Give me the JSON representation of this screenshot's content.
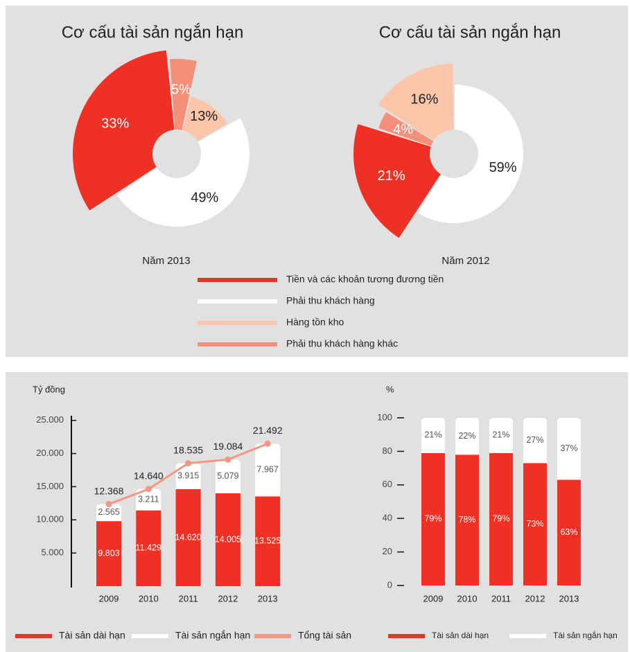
{
  "chart_data": [
    {
      "type": "pie",
      "title": "Cơ cấu tài sản ngắn hạn",
      "label": "Năm 2013",
      "categories": [
        "Tiền và các khoản tương đương tiền",
        "Phải thu khách hàng",
        "Hàng tồn kho",
        "Phải thu khách hàng khác"
      ],
      "colors": [
        "#ee3124",
        "#ffffff",
        "#fbc5aa",
        "#f4907a"
      ],
      "values": [
        33,
        49,
        13,
        5
      ],
      "value_labels": [
        "33%",
        "49%",
        "13%",
        "5%"
      ]
    },
    {
      "type": "pie",
      "title": "Cơ cấu tài sản ngắn hạn",
      "label": "Năm 2012",
      "colors": [
        "#ee3124",
        "#ffffff",
        "#fbc5aa",
        "#f4907a"
      ],
      "values": [
        21,
        59,
        16,
        4
      ],
      "value_labels": [
        "21%",
        "59%",
        "16%",
        "4%"
      ]
    },
    {
      "type": "bar",
      "stacked": true,
      "y_label": "Tỷ đồng",
      "categories": [
        "2009",
        "2010",
        "2011",
        "2012",
        "2013"
      ],
      "series": [
        {
          "name": "Tài sản dài hạn",
          "color": "#ee3124",
          "values": [
            9803,
            11429,
            14620,
            14005,
            13525
          ],
          "value_labels": [
            "9.803",
            "11.429",
            "14.620",
            "14.005",
            "13.525"
          ]
        },
        {
          "name": "Tài sản ngắn hạn",
          "color": "#ffffff",
          "values": [
            2565,
            3211,
            3915,
            5079,
            7967
          ],
          "value_labels": [
            "2.565",
            "3.211",
            "3.915",
            "5.079",
            "7.967"
          ]
        },
        {
          "name": "Tổng tài sản",
          "type": "line",
          "color": "#f39683",
          "values": [
            12368,
            14640,
            18535,
            19084,
            21492
          ],
          "value_labels": [
            "12.368",
            "14.640",
            "18.535",
            "19.084",
            "21.492"
          ]
        }
      ],
      "ylim": [
        0,
        25700
      ],
      "yticks": [
        {
          "value": 5000,
          "label": "5.000"
        },
        {
          "value": 10000,
          "label": "10.000"
        },
        {
          "value": 15000,
          "label": "15.000"
        },
        {
          "value": 20000,
          "label": "20.000"
        },
        {
          "value": 25000,
          "label": "25.000"
        }
      ]
    },
    {
      "type": "bar",
      "stacked": true,
      "y_label": "%",
      "categories": [
        "2009",
        "2010",
        "2011",
        "2012",
        "2013"
      ],
      "series": [
        {
          "name": "Tài sản dài hạn",
          "color": "#ee3124",
          "values": [
            79,
            78,
            79,
            73,
            63
          ],
          "value_labels": [
            "79%",
            "78%",
            "79%",
            "73%",
            "63%"
          ]
        },
        {
          "name": "Tài sản ngắn hạn",
          "color": "#ffffff",
          "values": [
            21,
            22,
            21,
            27,
            37
          ],
          "value_labels": [
            "21%",
            "22%",
            "21%",
            "27%",
            "37%"
          ]
        }
      ],
      "ylim": [
        0,
        100
      ],
      "yticks": [
        0,
        20,
        40,
        60,
        80,
        100
      ]
    }
  ]
}
